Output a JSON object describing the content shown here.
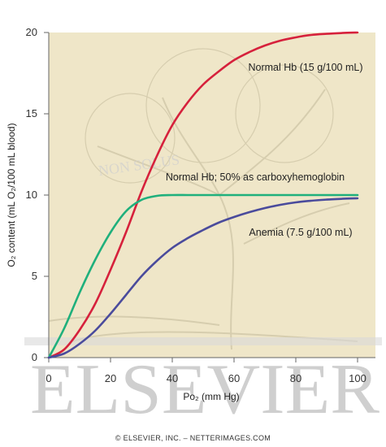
{
  "chart_data": {
    "type": "line",
    "xlabel": "Po₂ (mm Hg)",
    "ylabel": "O₂ content (mL O₂/100 mL blood)",
    "xlim": [
      0,
      100
    ],
    "ylim": [
      0,
      20
    ],
    "x_ticks": [
      "0",
      "20",
      "40",
      "60",
      "80",
      "100"
    ],
    "y_ticks": [
      "0",
      "5",
      "10",
      "15",
      "20"
    ],
    "grid": false,
    "legend": "curve labels placed next to each line",
    "background": "#efe6c8",
    "series": [
      {
        "name": "Normal Hb (15 g/100 mL)",
        "color": "#d6213c",
        "x": [
          0,
          5,
          10,
          15,
          20,
          25,
          30,
          35,
          40,
          45,
          50,
          55,
          60,
          65,
          70,
          75,
          80,
          85,
          90,
          95,
          100
        ],
        "y": [
          0,
          0.5,
          1.7,
          3.3,
          5.4,
          7.7,
          10.2,
          12.4,
          14.3,
          15.7,
          16.8,
          17.6,
          18.3,
          18.8,
          19.2,
          19.5,
          19.7,
          19.85,
          19.92,
          19.97,
          20
        ]
      },
      {
        "name": "Normal Hb; 50% as carboxyhemoglobin",
        "color": "#1fb07c",
        "x": [
          0,
          5,
          10,
          15,
          20,
          25,
          30,
          35,
          40,
          45,
          50,
          60,
          70,
          80,
          90,
          100
        ],
        "y": [
          0,
          1.8,
          4.0,
          6.0,
          7.7,
          9.0,
          9.7,
          9.95,
          10,
          10,
          10,
          10,
          10,
          10,
          10,
          10
        ]
      },
      {
        "name": "Anemia (7.5 g/100 mL)",
        "color": "#4a4b9c",
        "x": [
          0,
          5,
          10,
          15,
          20,
          25,
          30,
          35,
          40,
          45,
          50,
          55,
          60,
          65,
          70,
          75,
          80,
          85,
          90,
          95,
          100
        ],
        "y": [
          0,
          0.25,
          0.85,
          1.65,
          2.7,
          3.85,
          5.0,
          5.95,
          6.75,
          7.35,
          7.85,
          8.3,
          8.65,
          8.95,
          9.2,
          9.4,
          9.55,
          9.65,
          9.72,
          9.77,
          9.8
        ]
      }
    ]
  },
  "watermark": {
    "publisher": "ELSEVIER",
    "motto": "NON SOLUS"
  },
  "footer": {
    "copyright": "© ELSEVIER, INC. – NETTERIMAGES.COM"
  }
}
